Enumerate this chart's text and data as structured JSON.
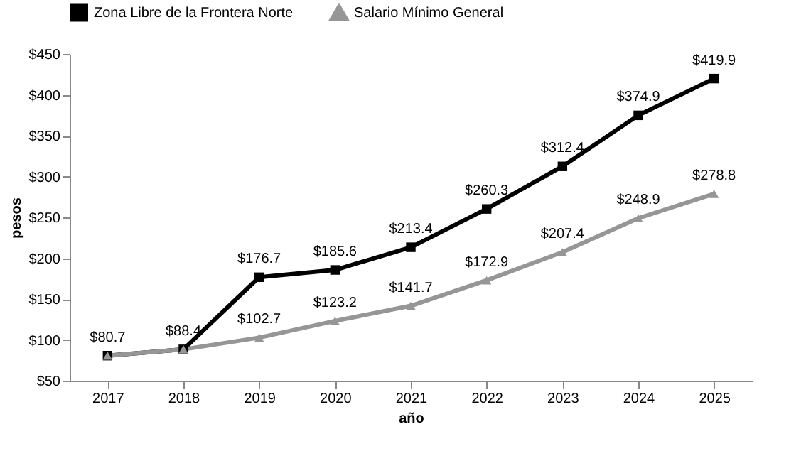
{
  "chart_data": {
    "type": "line",
    "xlabel": "año",
    "ylabel": "pesos",
    "categories": [
      "2017",
      "2018",
      "2019",
      "2020",
      "2021",
      "2022",
      "2023",
      "2024",
      "2025"
    ],
    "ylim": [
      50,
      450
    ],
    "yticks": [
      {
        "value": 50,
        "label": "$50"
      },
      {
        "value": 100,
        "label": "$100"
      },
      {
        "value": 150,
        "label": "$150"
      },
      {
        "value": 200,
        "label": "$200"
      },
      {
        "value": 250,
        "label": "$250"
      },
      {
        "value": 300,
        "label": "$300"
      },
      {
        "value": 350,
        "label": "$350"
      },
      {
        "value": 400,
        "label": "$400"
      },
      {
        "value": 450,
        "label": "$450"
      }
    ],
    "grid": false,
    "legend": "top",
    "line_style": "solid",
    "series": [
      {
        "name": "Zona Libre de la Frontera Norte",
        "color": "#000000",
        "marker": "square",
        "values": [
          80.7,
          88.4,
          176.7,
          185.6,
          213.4,
          260.3,
          312.4,
          374.9,
          419.9
        ],
        "value_labels": [
          "$80.7",
          "$88.4",
          "$176.7",
          "$185.6",
          "$213.4",
          "$260.3",
          "$312.4",
          "$374.9",
          "$419.9"
        ]
      },
      {
        "name": "Salario Mínimo General",
        "color": "#969696",
        "marker": "triangle",
        "values": [
          80.7,
          88.4,
          102.7,
          123.2,
          141.7,
          172.9,
          207.4,
          248.9,
          278.8
        ],
        "value_labels": [
          null,
          null,
          "$102.7",
          "$123.2",
          "$141.7",
          "$172.9",
          "$207.4",
          "$248.9",
          "$278.8"
        ]
      }
    ]
  }
}
